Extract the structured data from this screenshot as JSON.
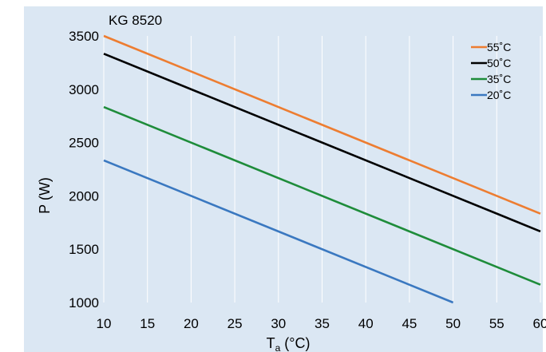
{
  "chart_data": {
    "type": "line",
    "title": "KG 8520",
    "xlabel_main": "T",
    "xlabel_sub": "a",
    "xlabel_unit": " (°C)",
    "ylabel": "P (W)",
    "xlim": [
      10,
      60
    ],
    "ylim": [
      1000,
      3500
    ],
    "x_ticks": [
      10,
      15,
      20,
      25,
      30,
      35,
      40,
      45,
      50,
      55,
      60
    ],
    "x_tick_labels": [
      "10",
      "15",
      "20",
      "25",
      "30",
      "35",
      "40",
      "45",
      "50",
      "55",
      "60"
    ],
    "y_ticks": [
      1000,
      1500,
      2000,
      2500,
      3000,
      3500
    ],
    "y_tick_labels": [
      "1000",
      "1500",
      "2000",
      "2500",
      "3000",
      "3500"
    ],
    "grid": "vertical",
    "legend_position": "top-right",
    "series": [
      {
        "name": "55˚C",
        "color": "#ed7d31",
        "x": [
          10,
          60
        ],
        "values": [
          3500,
          1833
        ]
      },
      {
        "name": "50˚C",
        "color": "#000000",
        "x": [
          10,
          60
        ],
        "values": [
          3333,
          1667
        ]
      },
      {
        "name": "35˚C",
        "color": "#1e8c3a",
        "x": [
          10,
          60
        ],
        "values": [
          2833,
          1167
        ]
      },
      {
        "name": "20˚C",
        "color": "#3a78c0",
        "x": [
          10,
          50
        ],
        "values": [
          2333,
          1000
        ]
      }
    ],
    "colors": {
      "plot_background": "#dbe7f3",
      "grid": "#ffffff",
      "text": "#000000"
    }
  }
}
